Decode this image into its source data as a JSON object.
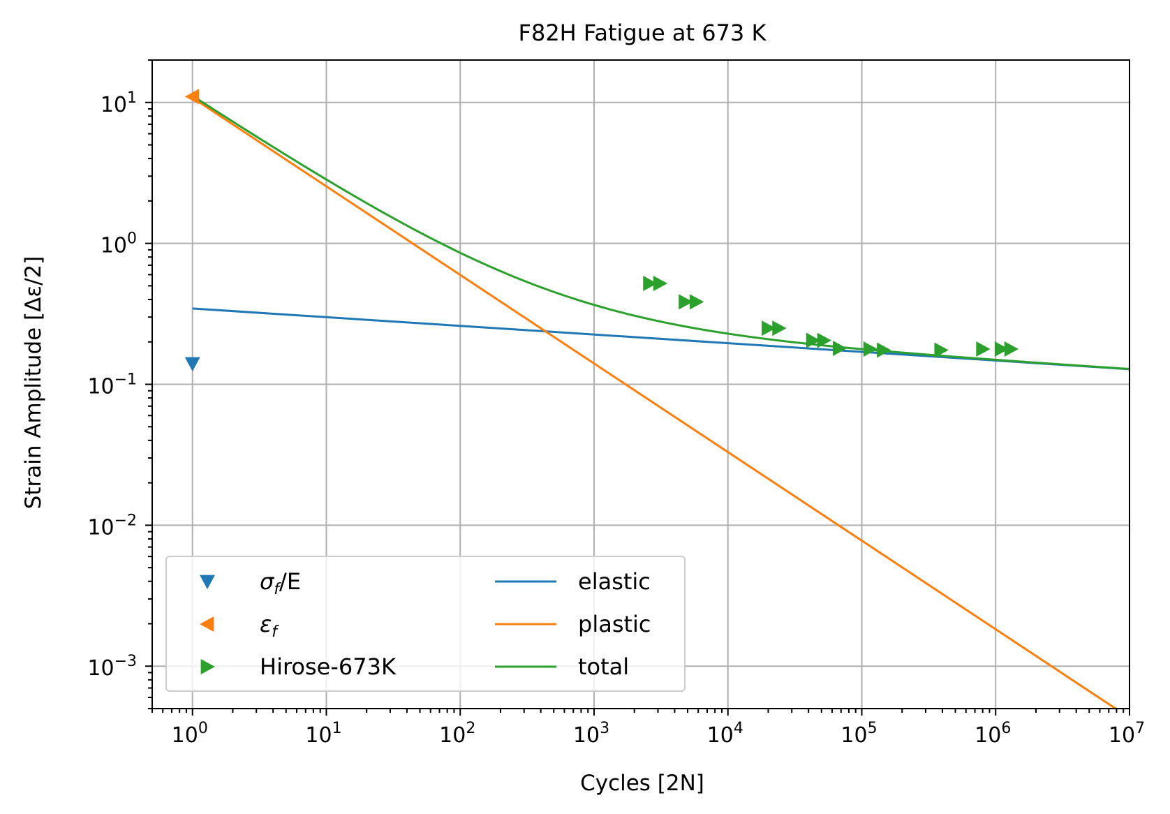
{
  "chart_data": {
    "type": "line",
    "title": "F82H Fatigue at 673 K",
    "xlabel": "Cycles [2N]",
    "ylabel": "Strain Amplitude [Δε/2]",
    "xscale": "log",
    "yscale": "log",
    "xlim": [
      0.5,
      10000000
    ],
    "ylim": [
      0.0005,
      20
    ],
    "grid": true,
    "legend_position": "lower-left",
    "legend_columns": 2,
    "x_ticks": [
      {
        "base": "10",
        "exp": "0",
        "value": 1
      },
      {
        "base": "10",
        "exp": "1",
        "value": 10
      },
      {
        "base": "10",
        "exp": "2",
        "value": 100
      },
      {
        "base": "10",
        "exp": "3",
        "value": 1000
      },
      {
        "base": "10",
        "exp": "4",
        "value": 10000
      },
      {
        "base": "10",
        "exp": "5",
        "value": 100000
      },
      {
        "base": "10",
        "exp": "6",
        "value": 1000000
      },
      {
        "base": "10",
        "exp": "7",
        "value": 10000000
      }
    ],
    "y_ticks": [
      {
        "base": "10",
        "exp": "1",
        "value": 10
      },
      {
        "base": "10",
        "exp": "0",
        "value": 1
      },
      {
        "base": "10",
        "exp": "−1",
        "value": 0.1
      },
      {
        "base": "10",
        "exp": "−2",
        "value": 0.01
      },
      {
        "base": "10",
        "exp": "−3",
        "value": 0.001
      }
    ],
    "scatter_series": [
      {
        "name": "σf/E",
        "legend_main": "σ",
        "legend_sub": "f",
        "legend_after": "/E",
        "marker": "triangle-down",
        "color": "#1f77b4",
        "points": [
          [
            1,
            0.14
          ]
        ]
      },
      {
        "name": "εf",
        "legend_main": "ε",
        "legend_sub": "f",
        "legend_after": "",
        "marker": "triangle-left",
        "color": "#ff7f0e",
        "points": [
          [
            1,
            11.0
          ]
        ]
      },
      {
        "name": "Hirose-673K",
        "legend_main": "Hirose-673K",
        "legend_sub": "",
        "legend_after": "",
        "marker": "triangle-right",
        "color": "#2ca02c",
        "points": [
          [
            2600,
            0.52
          ],
          [
            3100,
            0.52
          ],
          [
            4800,
            0.385
          ],
          [
            5800,
            0.385
          ],
          [
            20000,
            0.25
          ],
          [
            24000,
            0.25
          ],
          [
            43000,
            0.205
          ],
          [
            52000,
            0.205
          ],
          [
            68000,
            0.18
          ],
          [
            115000,
            0.178
          ],
          [
            145000,
            0.175
          ],
          [
            390000,
            0.175
          ],
          [
            800000,
            0.178
          ],
          [
            1100000,
            0.178
          ],
          [
            1300000,
            0.178
          ]
        ]
      }
    ],
    "line_series": [
      {
        "name": "elastic",
        "color": "#1f77b4",
        "points": [
          [
            1,
            0.345
          ],
          [
            10000000,
            0.128
          ]
        ]
      },
      {
        "name": "plastic",
        "color": "#ff7f0e",
        "points": [
          [
            1,
            10.8
          ],
          [
            10000000,
            0.00043
          ]
        ]
      },
      {
        "name": "total",
        "color": "#2ca02c",
        "function": "elastic+plastic",
        "x_range": [
          1,
          10000000
        ]
      }
    ]
  }
}
